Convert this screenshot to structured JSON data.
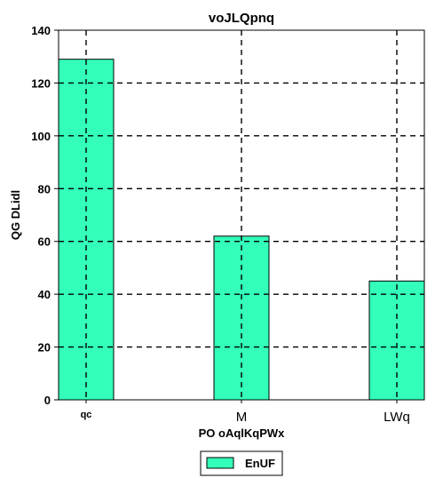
{
  "chart_data": {
    "type": "bar",
    "title": "voJLQpnq",
    "xlabel": "PO oAqlKqPWx",
    "ylabel": "QG DLidl",
    "categories": [
      "qc",
      "M",
      "LWq"
    ],
    "series": [
      {
        "name": "EnUF",
        "values": [
          129,
          62,
          45
        ]
      }
    ],
    "ylim": [
      0,
      140
    ],
    "yticks": [
      0,
      20,
      40,
      60,
      80,
      100,
      120,
      140
    ],
    "grid": true,
    "legend_position": "bottom-center",
    "colors": {
      "bar_fill": "#33ffbb",
      "bar_stroke": "#000000",
      "grid": "#000000",
      "text": "#000000"
    }
  }
}
